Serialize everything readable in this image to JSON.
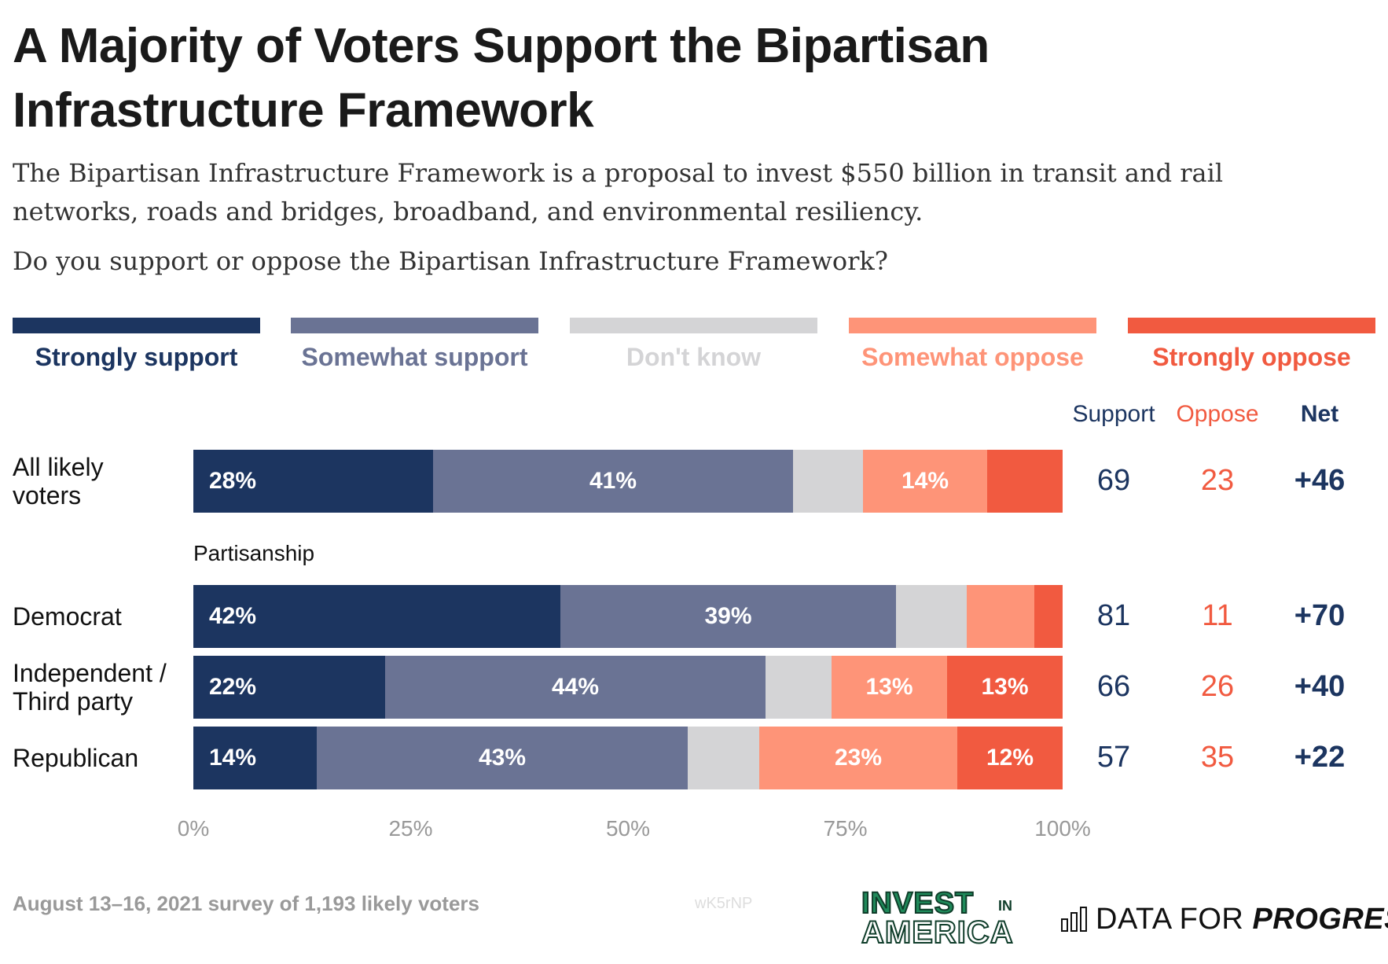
{
  "header": {
    "title": "A Majority of Voters Support the Bipartisan Infrastructure Framework",
    "subtitle": "The Bipartisan Infrastructure Framework is a proposal to invest $550 billion in transit and rail networks, roads and bridges, broadband, and environmental resiliency.",
    "question": "Do you support or oppose the Bipartisan Infrastructure Framework?"
  },
  "legend": [
    {
      "label": "Strongly support",
      "color": "#1c3560",
      "text_color": "#1c3560"
    },
    {
      "label": "Somewhat support",
      "color": "#6a7394",
      "text_color": "#6a7394"
    },
    {
      "label": "Don't know",
      "color": "#d4d4d6",
      "text_color": "#d4d4d6"
    },
    {
      "label": "Somewhat oppose",
      "color": "#fe9478",
      "text_color": "#fe9478"
    },
    {
      "label": "Strongly oppose",
      "color": "#f15a40",
      "text_color": "#f15a40"
    }
  ],
  "columns": {
    "support": "Support",
    "oppose": "Oppose",
    "net": "Net"
  },
  "group_label": "Partisanship",
  "chart_data": {
    "type": "bar",
    "orientation": "horizontal",
    "stacked": true,
    "xlim": [
      0,
      100
    ],
    "x_ticks": [
      "0%",
      "25%",
      "50%",
      "75%",
      "100%"
    ],
    "legend_position": "top",
    "series_names": [
      "Strongly support",
      "Somewhat support",
      "Don't know",
      "Somewhat oppose",
      "Strongly oppose"
    ],
    "rows": [
      {
        "label": "All likely voters",
        "segments": [
          {
            "value": 27.6,
            "label": "28%"
          },
          {
            "value": 41.4,
            "label": "41%"
          },
          {
            "value": 8.0,
            "label": ""
          },
          {
            "value": 14.3,
            "label": "14%"
          },
          {
            "value": 8.7,
            "label": ""
          }
        ],
        "support": "69",
        "oppose": "23",
        "net": "+46"
      },
      {
        "label": "Democrat",
        "segments": [
          {
            "value": 42.2,
            "label": "42%"
          },
          {
            "value": 38.6,
            "label": "39%"
          },
          {
            "value": 8.2,
            "label": ""
          },
          {
            "value": 7.7,
            "label": ""
          },
          {
            "value": 3.3,
            "label": ""
          }
        ],
        "support": "81",
        "oppose": "11",
        "net": "+70"
      },
      {
        "label": "Independent / Third party",
        "segments": [
          {
            "value": 22.1,
            "label": "22%"
          },
          {
            "value": 43.7,
            "label": "44%"
          },
          {
            "value": 7.6,
            "label": ""
          },
          {
            "value": 13.3,
            "label": "13%"
          },
          {
            "value": 13.3,
            "label": "13%"
          }
        ],
        "support": "66",
        "oppose": "26",
        "net": "+40"
      },
      {
        "label": "Republican",
        "segments": [
          {
            "value": 14.2,
            "label": "14%"
          },
          {
            "value": 42.7,
            "label": "43%"
          },
          {
            "value": 8.2,
            "label": ""
          },
          {
            "value": 22.8,
            "label": "23%"
          },
          {
            "value": 12.1,
            "label": "12%"
          }
        ],
        "support": "57",
        "oppose": "35",
        "net": "+22"
      }
    ]
  },
  "footer": {
    "source": "August 13–16, 2021 survey of 1,193 likely voters",
    "watermark": "wK5rNP",
    "logo1_line1": "INVEST",
    "logo1_in": "IN",
    "logo1_line2": "AMERICA",
    "logo2_prefix": "DATA FOR ",
    "logo2_bold": "PROGRESS"
  },
  "colors": {
    "support_text": "#1c3560",
    "oppose_text": "#f15a40",
    "net_text": "#1c3560"
  }
}
